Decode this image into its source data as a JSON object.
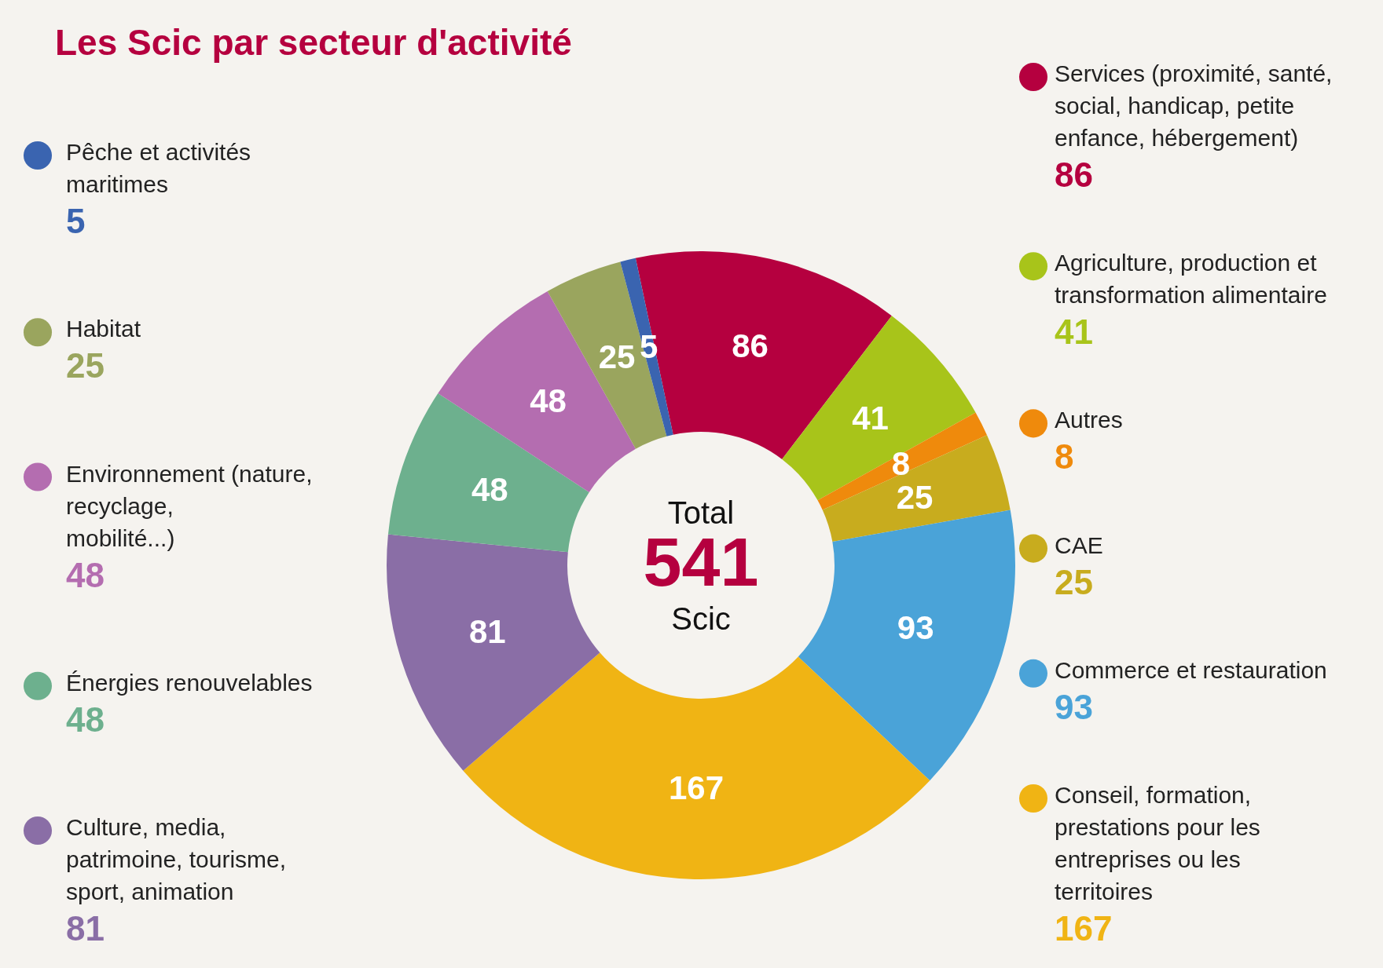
{
  "chart_data": {
    "type": "donut",
    "title": "Les Scic par secteur d'activité",
    "categories": [
      "Services (proximité, santé, social, handicap, petite enfance, hébergement)",
      "Agriculture, production et transformation alimentaire",
      "Autres",
      "CAE",
      "Commerce et restauration",
      "Conseil, formation, prestations pour les entreprises ou les territoires",
      "Culture, media, patrimoine, tourisme, sport, animation",
      "Énergies renouvelables",
      "Environnement (nature, recyclage, mobilité...)",
      "Habitat",
      "Pêche et activités maritimes"
    ],
    "values": [
      86,
      41,
      8,
      25,
      93,
      167,
      81,
      48,
      48,
      25,
      5
    ],
    "colors": [
      "#b5003f",
      "#a8c41a",
      "#ef8a0c",
      "#c8ac1e",
      "#4aa3d8",
      "#f0b414",
      "#8a6ea6",
      "#6db08e",
      "#b46db0",
      "#9aa55e",
      "#3a64b0"
    ],
    "data_labels": true,
    "legend": "right",
    "annotations": [
      "Total",
      "541",
      "Scic",
      "86",
      "41",
      "8",
      "25",
      "93",
      "167",
      "81",
      "48",
      "48",
      "25",
      "5"
    ]
  }
}
